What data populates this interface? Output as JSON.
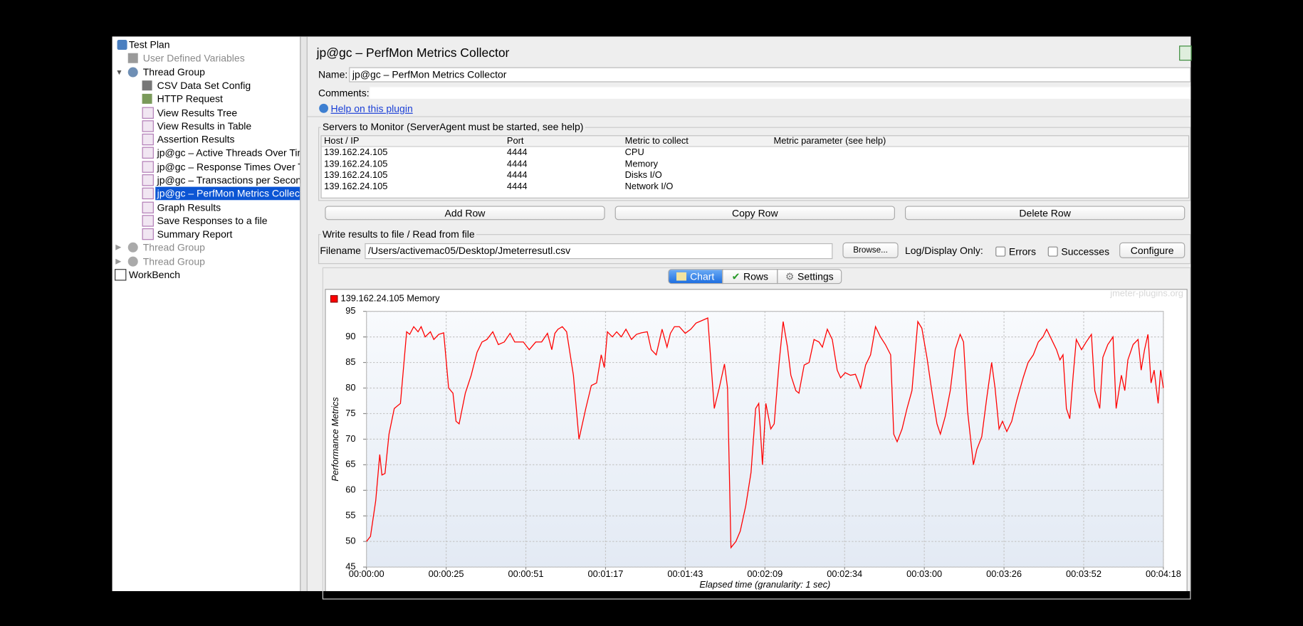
{
  "tree": [
    "Test Plan",
    "User Defined Variables",
    "Thread Group",
    "CSV Data Set Config",
    "HTTP Request",
    "View Results Tree",
    "View Results in Table",
    "Assertion Results",
    "jp@gc – Active Threads Over Time",
    "jp@gc – Response Times Over Time",
    "jp@gc – Transactions per Second",
    "jp@gc – PerfMon Metrics Collector",
    "Graph Results",
    "Save Responses to a file",
    "Summary Report",
    "Thread Group",
    "Thread Group",
    "WorkBench"
  ],
  "panel": {
    "title": "jp@gc – PerfMon Metrics Collector",
    "name_label": "Name:",
    "name_value": "jp@gc – PerfMon Metrics Collector",
    "comments_label": "Comments:",
    "help_link": "Help on this plugin"
  },
  "servers": {
    "legend": "Servers to Monitor (ServerAgent must be started, see help)",
    "columns": [
      "Host / IP",
      "Port",
      "Metric to collect",
      "Metric parameter (see help)"
    ],
    "rows": [
      [
        "139.162.24.105",
        "4444",
        "CPU",
        ""
      ],
      [
        "139.162.24.105",
        "4444",
        "Memory",
        ""
      ],
      [
        "139.162.24.105",
        "4444",
        "Disks I/O",
        ""
      ],
      [
        "139.162.24.105",
        "4444",
        "Network I/O",
        ""
      ]
    ],
    "buttons": [
      "Add Row",
      "Copy Row",
      "Delete Row"
    ]
  },
  "file": {
    "legend": "Write results to file / Read from file",
    "filename_label": "Filename",
    "filename": "/Users/activemac05/Desktop/Jmeterresutl.csv",
    "browse": "Browse...",
    "log_label": "Log/Display Only:",
    "errors": "Errors",
    "successes": "Successes",
    "configure": "Configure"
  },
  "tabs": [
    "Chart",
    "Rows",
    "Settings"
  ],
  "chart_data": {
    "type": "line",
    "watermark": "jmeter-plugins.org",
    "y_label": "Performance Metrics",
    "x_label": "Elapsed time (granularity: 1 sec)",
    "grid": true,
    "legend": "top-left",
    "xlim": [
      0,
      258
    ],
    "xticks": [
      {
        "value": 0,
        "label": "00:00:00"
      },
      {
        "value": 25.8,
        "label": "00:00:25"
      },
      {
        "value": 51.6,
        "label": "00:00:51"
      },
      {
        "value": 77.4,
        "label": "00:01:17"
      },
      {
        "value": 103.2,
        "label": "00:01:43"
      },
      {
        "value": 129,
        "label": "00:02:09"
      },
      {
        "value": 154.8,
        "label": "00:02:34"
      },
      {
        "value": 180.6,
        "label": "00:03:00"
      },
      {
        "value": 206.4,
        "label": "00:03:26"
      },
      {
        "value": 232.2,
        "label": "00:03:52"
      },
      {
        "value": 258,
        "label": "00:04:18"
      }
    ],
    "ylim": [
      45,
      95
    ],
    "yticks": [
      45,
      50,
      55,
      60,
      65,
      70,
      75,
      80,
      85,
      90,
      95
    ],
    "series": [
      {
        "name": "139.162.24.105 Memory",
        "color": "#ff0000",
        "x": [
          0,
          1.3,
          3,
          4.3,
          5,
          6,
          7.3,
          9,
          11,
          13,
          14,
          15.3,
          16.7,
          17.7,
          19,
          20.7,
          21.8,
          23.4,
          25,
          26.6,
          28,
          29,
          30,
          32,
          33.9,
          35.8,
          37.4,
          39,
          40.9,
          42.7,
          44.6,
          46.5,
          48,
          50.8,
          52.7,
          54.8,
          56.7,
          58.6,
          60,
          61,
          62,
          63.4,
          64.8,
          67,
          68.8,
          71,
          72.8,
          74.5,
          76,
          77,
          78,
          79.6,
          81,
          82.5,
          84,
          85.8,
          87.4,
          89,
          90.9,
          92.2,
          93.8,
          95.7,
          97.3,
          98.4,
          99.7,
          101.3,
          103.2,
          105,
          106.7,
          108.6,
          110.5,
          112.6,
          114.2,
          115.9,
          116.9,
          118,
          119.6,
          121,
          122.8,
          124.5,
          126,
          127,
          128.2,
          129.3,
          130.9,
          132,
          133.6,
          134.9,
          136.3,
          137.4,
          139,
          140,
          141.7,
          143.3,
          144.9,
          146.5,
          147.6,
          149.2,
          150.8,
          152.4,
          153.5,
          155,
          156.7,
          158.3,
          160,
          161.6,
          163.2,
          164.8,
          166.4,
          168,
          169.7,
          170.7,
          171.8,
          173.4,
          175,
          176.6,
          178.5,
          179.8,
          181.5,
          183,
          184.7,
          185.8,
          187.4,
          189,
          190.6,
          192.2,
          193.3,
          194.6,
          196.5,
          197.6,
          199.2,
          200.8,
          202.4,
          203.5,
          204.8,
          205.9,
          207.3,
          208.9,
          210.5,
          212.6,
          214.2,
          215.9,
          217.5,
          219,
          220.2,
          221.8,
          223.4,
          224.5,
          225.5,
          226.6,
          227.7,
          228.8,
          229.8,
          231.5,
          233,
          234.7,
          235.8,
          237.4,
          238.4,
          240,
          241.7,
          242.7,
          244.4,
          245.5,
          246.5,
          248.2,
          249.8,
          250.8,
          251.9,
          253,
          254,
          255,
          256.3,
          257.1,
          258
        ],
        "values": [
          50,
          51,
          58,
          67,
          63,
          63.3,
          71,
          76,
          77,
          91,
          90.5,
          92,
          91,
          92,
          90,
          91,
          89.5,
          90.5,
          90.8,
          80,
          79,
          73.5,
          73,
          79,
          82.5,
          87,
          89,
          89.5,
          91,
          88.5,
          89,
          90.7,
          89,
          89,
          87.5,
          89,
          89,
          90.7,
          87.5,
          90.7,
          91.5,
          92,
          91,
          82.5,
          70,
          76,
          80.5,
          81,
          86.5,
          84,
          91,
          90,
          91,
          90,
          91.5,
          89.5,
          90.5,
          90.8,
          91,
          87.5,
          86.5,
          91.5,
          88,
          90.7,
          92,
          92,
          90.7,
          91.5,
          92.7,
          93.2,
          93.7,
          76,
          80,
          84.7,
          80,
          48.8,
          50,
          52,
          57,
          63.5,
          76,
          77,
          65,
          77,
          72,
          73,
          85,
          93,
          88,
          82.5,
          79.5,
          79,
          84.5,
          85,
          89.5,
          89,
          88,
          91.5,
          89.5,
          83.5,
          82,
          83,
          82.5,
          82.7,
          80,
          84.5,
          86.5,
          92,
          90,
          88.5,
          86.5,
          71,
          69.5,
          72,
          76,
          79.5,
          93,
          91.7,
          85.8,
          79.5,
          73,
          71,
          74.5,
          79.5,
          87.5,
          90.5,
          89,
          75.5,
          65,
          68,
          70.5,
          78,
          85,
          80,
          72,
          73.5,
          71.5,
          73.5,
          77.5,
          82,
          85,
          86.5,
          89,
          90,
          91.5,
          89.5,
          87.5,
          85.5,
          86.5,
          76,
          74,
          82.5,
          89.5,
          87.5,
          89,
          90.5,
          79.5,
          76,
          86,
          88.5,
          90,
          76,
          82.5,
          79.5,
          85.5,
          88.5,
          89.5,
          83.5,
          87.5,
          90.5,
          81,
          83.5,
          77,
          83.5,
          80
        ]
      }
    ]
  }
}
